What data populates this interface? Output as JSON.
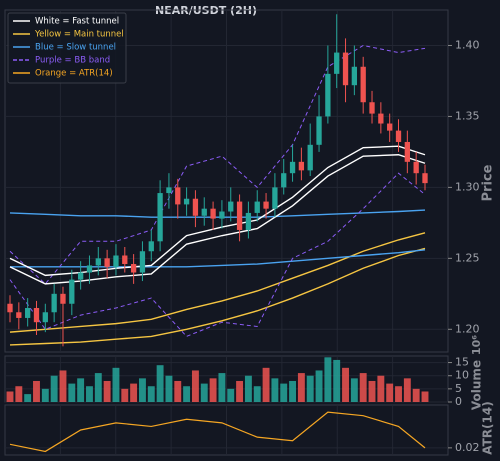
{
  "chart_data": {
    "type": "candlestick",
    "title": "NEAR/USDT (2H)",
    "legend": [
      {
        "label": "White = Fast tunnel",
        "color": "#ffffff"
      },
      {
        "label": "Yellow = Main tunnel",
        "color": "#f5c542"
      },
      {
        "label": "Blue = Slow tunnel",
        "color": "#4aa3f0"
      },
      {
        "label": "Purple = BB band",
        "color": "#8b5cf6",
        "dashed": true
      },
      {
        "label": "Orange = ATR(14)",
        "color": "#f5a623"
      }
    ],
    "up_color": "#26a69a",
    "down_color": "#ef5350",
    "grid": true,
    "ylabel": "Price",
    "ylim": [
      1.184,
      1.425
    ],
    "yticks": [
      {
        "value": 1.2,
        "label": "1.20"
      },
      {
        "value": 1.25,
        "label": "1.25"
      },
      {
        "value": 1.3,
        "label": "1.30"
      },
      {
        "value": 1.35,
        "label": "1.35"
      },
      {
        "value": 1.4,
        "label": "1.40"
      }
    ],
    "open": [
      1.218,
      1.212,
      1.208,
      1.215,
      1.205,
      1.212,
      1.225,
      1.218,
      1.235,
      1.24,
      1.245,
      1.25,
      1.244,
      1.252,
      1.246,
      1.24,
      1.255,
      1.262,
      1.296,
      1.3,
      1.288,
      1.292,
      1.28,
      1.285,
      1.278,
      1.283,
      1.29,
      1.27,
      1.282,
      1.29,
      1.285,
      1.3,
      1.31,
      1.318,
      1.312,
      1.33,
      1.35,
      1.38,
      1.395,
      1.372,
      1.385,
      1.36,
      1.352,
      1.345,
      1.34,
      1.332,
      1.318,
      1.31
    ],
    "high": [
      1.224,
      1.219,
      1.222,
      1.22,
      1.218,
      1.232,
      1.23,
      1.242,
      1.248,
      1.252,
      1.258,
      1.256,
      1.26,
      1.258,
      1.253,
      1.262,
      1.27,
      1.305,
      1.31,
      1.306,
      1.3,
      1.298,
      1.293,
      1.29,
      1.291,
      1.3,
      1.295,
      1.29,
      1.298,
      1.296,
      1.31,
      1.32,
      1.33,
      1.328,
      1.345,
      1.365,
      1.4,
      1.422,
      1.405,
      1.4,
      1.392,
      1.368,
      1.36,
      1.352,
      1.348,
      1.34,
      1.325,
      1.316
    ],
    "low": [
      1.205,
      1.2,
      1.202,
      1.196,
      1.198,
      1.205,
      1.188,
      1.21,
      1.228,
      1.232,
      1.238,
      1.236,
      1.238,
      1.24,
      1.232,
      1.234,
      1.248,
      1.255,
      1.285,
      1.278,
      1.28,
      1.272,
      1.273,
      1.27,
      1.271,
      1.276,
      1.262,
      1.264,
      1.276,
      1.278,
      1.279,
      1.295,
      1.304,
      1.305,
      1.308,
      1.325,
      1.345,
      1.37,
      1.36,
      1.365,
      1.352,
      1.345,
      1.338,
      1.332,
      1.325,
      1.31,
      1.302,
      1.298
    ],
    "close": [
      1.212,
      1.208,
      1.215,
      1.205,
      1.212,
      1.225,
      1.218,
      1.235,
      1.24,
      1.245,
      1.25,
      1.244,
      1.252,
      1.246,
      1.24,
      1.255,
      1.262,
      1.296,
      1.3,
      1.288,
      1.292,
      1.28,
      1.285,
      1.278,
      1.283,
      1.29,
      1.27,
      1.282,
      1.29,
      1.285,
      1.3,
      1.31,
      1.318,
      1.312,
      1.33,
      1.35,
      1.38,
      1.395,
      1.372,
      1.385,
      1.36,
      1.352,
      1.345,
      1.34,
      1.332,
      1.318,
      1.31,
      1.303
    ],
    "lines": [
      {
        "color": "#f5c542",
        "x": [
          0,
          4,
          8,
          12,
          16,
          20,
          24,
          28,
          32,
          36,
          40,
          44,
          47
        ],
        "values": [
          1.198,
          1.2,
          1.202,
          1.204,
          1.207,
          1.214,
          1.22,
          1.227,
          1.236,
          1.245,
          1.255,
          1.263,
          1.268
        ]
      },
      {
        "color": "#f5c542",
        "x": [
          0,
          4,
          8,
          12,
          16,
          20,
          24,
          28,
          32,
          36,
          40,
          44,
          47
        ],
        "values": [
          1.189,
          1.19,
          1.191,
          1.193,
          1.195,
          1.2,
          1.206,
          1.213,
          1.222,
          1.232,
          1.243,
          1.252,
          1.257
        ]
      },
      {
        "color": "#4aa3f0",
        "x": [
          0,
          4,
          8,
          12,
          16,
          20,
          24,
          28,
          32,
          36,
          40,
          44,
          47
        ],
        "values": [
          1.282,
          1.281,
          1.28,
          1.28,
          1.279,
          1.279,
          1.279,
          1.279,
          1.28,
          1.281,
          1.282,
          1.283,
          1.284
        ]
      },
      {
        "color": "#4aa3f0",
        "x": [
          0,
          4,
          8,
          12,
          16,
          20,
          24,
          28,
          32,
          36,
          40,
          44,
          47
        ],
        "values": [
          1.244,
          1.244,
          1.244,
          1.244,
          1.244,
          1.244,
          1.245,
          1.246,
          1.248,
          1.25,
          1.252,
          1.254,
          1.256
        ]
      },
      {
        "color": "#8b5cf6",
        "dashed": true,
        "x": [
          0,
          4,
          8,
          12,
          16,
          20,
          24,
          28,
          32,
          36,
          40,
          44,
          47
        ],
        "values": [
          1.255,
          1.232,
          1.262,
          1.262,
          1.27,
          1.315,
          1.322,
          1.3,
          1.33,
          1.385,
          1.4,
          1.395,
          1.398
        ]
      },
      {
        "color": "#8b5cf6",
        "dashed": true,
        "x": [
          0,
          4,
          8,
          12,
          16,
          20,
          24,
          28,
          32,
          36,
          40,
          44,
          47
        ],
        "values": [
          1.235,
          1.2,
          1.21,
          1.215,
          1.222,
          1.195,
          1.205,
          1.202,
          1.25,
          1.262,
          1.285,
          1.31,
          1.295
        ]
      },
      {
        "color": "#ffffff",
        "x": [
          0,
          4,
          8,
          12,
          16,
          20,
          24,
          28,
          32,
          36,
          40,
          44,
          47
        ],
        "values": [
          1.25,
          1.238,
          1.24,
          1.243,
          1.245,
          1.266,
          1.272,
          1.277,
          1.293,
          1.314,
          1.328,
          1.329,
          1.323
        ]
      },
      {
        "color": "#ffffff",
        "x": [
          0,
          4,
          8,
          12,
          16,
          20,
          24,
          28,
          32,
          36,
          40,
          44,
          47
        ],
        "values": [
          1.244,
          1.232,
          1.234,
          1.237,
          1.239,
          1.26,
          1.266,
          1.271,
          1.287,
          1.308,
          1.322,
          1.323,
          1.317
        ]
      }
    ],
    "volume": {
      "ylabel": "Volume",
      "exponent": "10⁶",
      "ylim": [
        0,
        17.5
      ],
      "yticks": [
        0,
        5,
        10,
        15
      ],
      "values": [
        4,
        6,
        3,
        8,
        5,
        10,
        12,
        7,
        9,
        6,
        11,
        8,
        13,
        5,
        7,
        9,
        6,
        14,
        10,
        8,
        6,
        12,
        7,
        9,
        11,
        5,
        8,
        10,
        6,
        13,
        9,
        7,
        8,
        11,
        10,
        12,
        17,
        16,
        13,
        9,
        11,
        8,
        10,
        7,
        6,
        9,
        5,
        4
      ]
    },
    "atr": {
      "ylabel": "ATR(14)",
      "color": "#f5a623",
      "ylim": [
        0.018,
        0.032
      ],
      "yticks": [
        0.02
      ],
      "x": [
        0,
        4,
        8,
        12,
        16,
        20,
        24,
        28,
        32,
        36,
        40,
        44,
        47
      ],
      "values": [
        0.021,
        0.019,
        0.025,
        0.027,
        0.026,
        0.028,
        0.027,
        0.023,
        0.022,
        0.03,
        0.029,
        0.026,
        0.02
      ]
    }
  }
}
